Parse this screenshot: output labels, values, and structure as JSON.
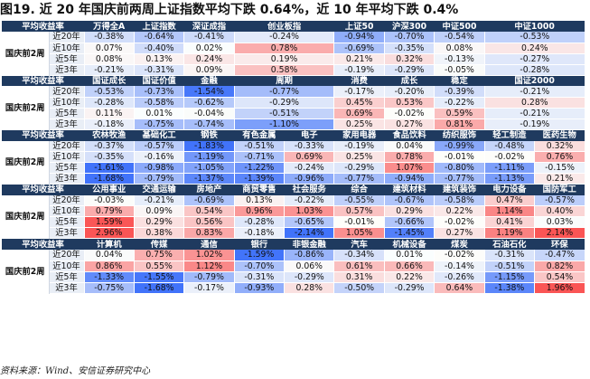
{
  "title": "图19. 近 20 年国庆前两周上证指数平均下跌 0.64%，近 10 年平均下跌 0.4%",
  "source": "资料来源：Wind、安信证券研究中心",
  "header_label": "平均收益率",
  "group_label": "国庆前2周",
  "periods": [
    "近20年",
    "近10年",
    "近5年",
    "近3年"
  ],
  "colors": {
    "header_bg": "#1f3a5f",
    "strong_red": "#f05a5a",
    "strong_blue": "#3a6fc0"
  },
  "blocks": [
    {
      "headers": [
        "万得全A",
        "上证指数",
        "深证成指",
        "创业板指",
        "上证50",
        "沪深300",
        "中证500",
        "中证1000"
      ],
      "rows": [
        [
          "-0.38%",
          "-0.64%",
          "-0.41%",
          "-0.24%",
          "-0.94%",
          "-0.70%",
          "-0.54%",
          "-0.53%"
        ],
        [
          "0.07%",
          "-0.40%",
          "0.02%",
          "0.78%",
          "-0.69%",
          "-0.35%",
          "0.08%",
          "0.24%"
        ],
        [
          "0.08%",
          "0.13%",
          "0.24%",
          "0.19%",
          "0.21%",
          "0.32%",
          "-0.13%",
          "-0.27%"
        ],
        [
          "-0.21%",
          "-0.31%",
          "0.09%",
          "0.58%",
          "-0.19%",
          "-0.29%",
          "-0.05%",
          "-0.28%"
        ]
      ]
    },
    {
      "headers": [
        "国证成长",
        "国证价值",
        "金融",
        "周期",
        "消费",
        "成长",
        "稳定",
        "国证2000"
      ],
      "rows": [
        [
          "-0.53%",
          "-0.73%",
          "-1.54%",
          "-0.77%",
          "-0.17%",
          "-0.20%",
          "-0.39%",
          "-0.21%"
        ],
        [
          "-0.28%",
          "-0.58%",
          "-0.62%",
          "-0.29%",
          "0.45%",
          "0.53%",
          "-0.22%",
          "0.28%"
        ],
        [
          "0.11%",
          "0.01%",
          "-0.04%",
          "-0.51%",
          "0.69%",
          "-0.02%",
          "0.59%",
          "-0.21%"
        ],
        [
          "-0.18%",
          "-0.75%",
          "-0.74%",
          "-1.10%",
          "0.25%",
          "0.27%",
          "0.81%",
          "-0.19%"
        ]
      ]
    },
    {
      "headers": [
        "农林牧渔",
        "基础化工",
        "钢铁",
        "有色金属",
        "电子",
        "家用电器",
        "食品饮料",
        "纺织服饰",
        "轻工制造",
        "医药生物"
      ],
      "rows": [
        [
          "-0.37%",
          "-0.57%",
          "-1.83%",
          "-0.51%",
          "-0.33%",
          "-0.19%",
          "0.04%",
          "-0.99%",
          "-0.48%",
          "0.32%"
        ],
        [
          "-0.35%",
          "-0.16%",
          "-1.19%",
          "-0.71%",
          "0.69%",
          "0.25%",
          "0.78%",
          "-0.01%",
          "-0.02%",
          "0.76%"
        ],
        [
          "-1.61%",
          "-0.98%",
          "-1.05%",
          "-1.22%",
          "-0.24%",
          "-0.29%",
          "1.07%",
          "-0.80%",
          "-1.11%",
          "-0.15%"
        ],
        [
          "-1.68%",
          "-0.79%",
          "-1.37%",
          "-1.39%",
          "-0.96%",
          "-0.77%",
          "-0.94%",
          "-0.77%",
          "-1.13%",
          "0.21%"
        ]
      ]
    },
    {
      "headers": [
        "公用事业",
        "交通运输",
        "房地产",
        "商贸零售",
        "社会服务",
        "综合",
        "建筑材料",
        "建筑装饰",
        "电力设备",
        "国防军工"
      ],
      "rows": [
        [
          "-0.03%",
          "-0.21%",
          "-0.69%",
          "0.13%",
          "-0.22%",
          "-0.55%",
          "-0.67%",
          "-0.58%",
          "0.47%",
          "-0.57%"
        ],
        [
          "0.79%",
          "0.09%",
          "0.54%",
          "0.96%",
          "1.03%",
          "0.57%",
          "0.29%",
          "0.22%",
          "1.14%",
          "0.40%"
        ],
        [
          "1.59%",
          "0.29%",
          "0.56%",
          "-0.28%",
          "-0.65%",
          "-0.01%",
          "-0.66%",
          "-0.02%",
          "0.41%",
          "0.03%"
        ],
        [
          "2.96%",
          "0.38%",
          "0.83%",
          "-0.18%",
          "-2.14%",
          "1.05%",
          "-1.45%",
          "0.27%",
          "1.19%",
          "2.14%"
        ]
      ]
    },
    {
      "headers": [
        "计算机",
        "传媒",
        "通信",
        "银行",
        "非银金融",
        "汽车",
        "机械设备",
        "煤炭",
        "石油石化",
        "环保"
      ],
      "rows": [
        [
          "0.04%",
          "0.75%",
          "1.02%",
          "-1.59%",
          "-0.86%",
          "-0.34%",
          "0.01%",
          "-0.02%",
          "-0.31%",
          "-0.47%"
        ],
        [
          "0.86%",
          "0.55%",
          "1.12%",
          "-0.70%",
          "0.06%",
          "0.61%",
          "0.66%",
          "-0.14%",
          "-0.51%",
          "0.82%"
        ],
        [
          "-1.33%",
          "-1.55%",
          "-0.79%",
          "-0.31%",
          "-0.29%",
          "0.31%",
          "0.22%",
          "-0.26%",
          "-1.15%",
          "0.54%"
        ],
        [
          "-0.75%",
          "-1.68%",
          "-0.17%",
          "-0.93%",
          "0.28%",
          "-0.50%",
          "-0.29%",
          "0.64%",
          "-1.38%",
          "1.96%"
        ]
      ]
    }
  ]
}
